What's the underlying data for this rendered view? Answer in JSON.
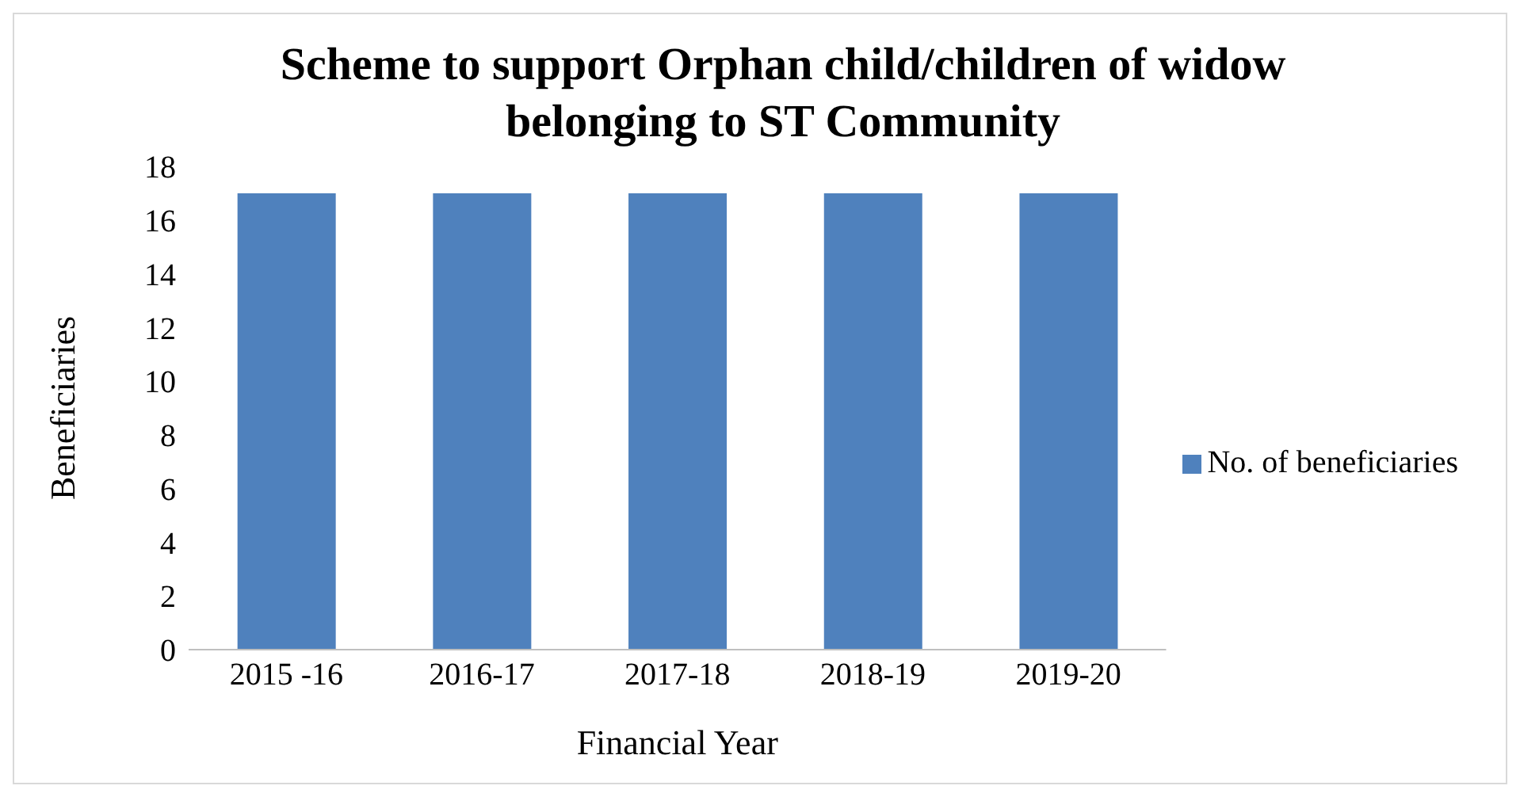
{
  "chart_data": {
    "type": "bar",
    "title": "Scheme to support Orphan child/children of widow belonging to ST Community",
    "xlabel": "Financial Year",
    "ylabel": "Beneficiaries",
    "categories": [
      "2015 -16",
      "2016-17",
      "2017-18",
      "2018-19",
      "2019-20"
    ],
    "series": [
      {
        "name": "No. of beneficiaries",
        "color": "#4f81bd",
        "values": [
          17,
          17,
          17,
          17,
          17
        ]
      }
    ],
    "ylim": [
      0,
      18
    ],
    "yticks": [
      0,
      2,
      4,
      6,
      8,
      10,
      12,
      14,
      16,
      18
    ],
    "grid": false,
    "legend": "right"
  }
}
